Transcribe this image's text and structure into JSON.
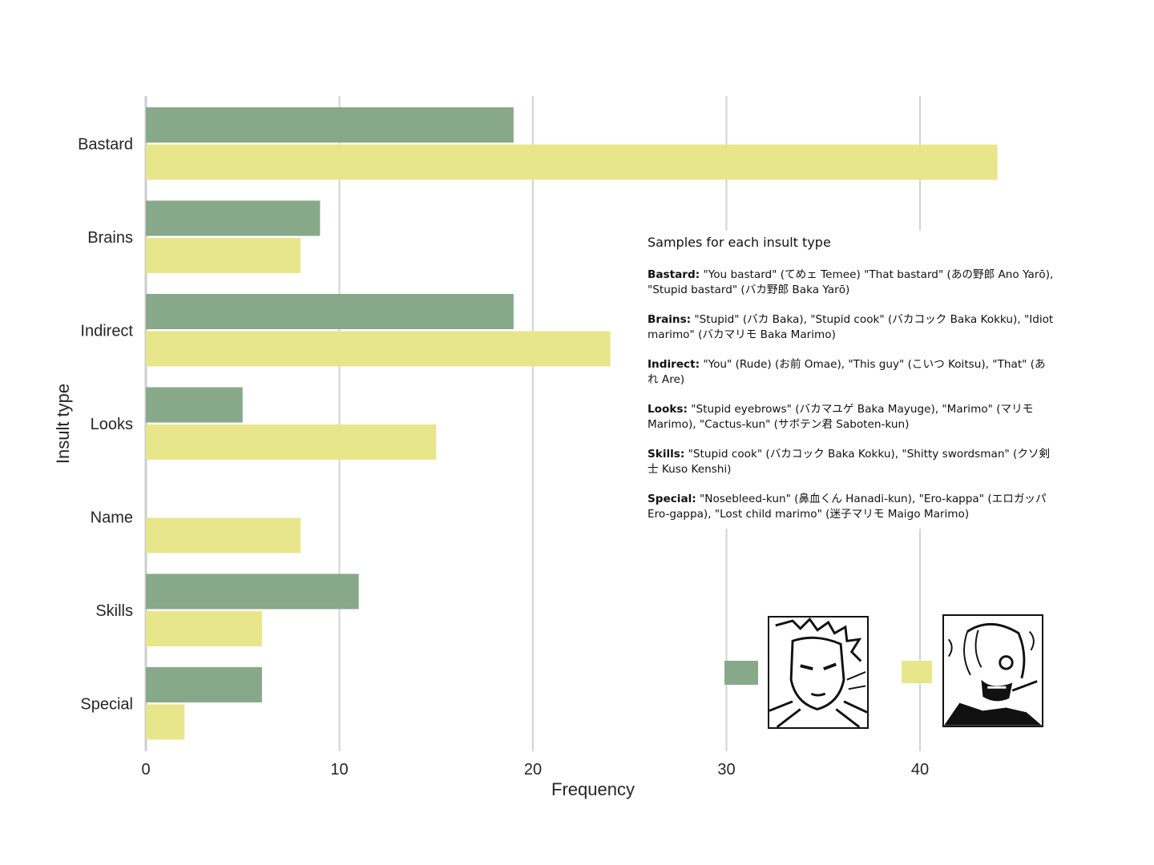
{
  "chart_data": {
    "type": "bar",
    "orientation": "horizontal",
    "categories": [
      "Bastard",
      "Brains",
      "Indirect",
      "Looks",
      "Name",
      "Skills",
      "Special"
    ],
    "series": [
      {
        "name": "Zoro",
        "color": "#87a98a",
        "values": [
          19,
          9,
          19,
          5,
          0,
          11,
          6
        ]
      },
      {
        "name": "Sanji",
        "color": "#e8e68a",
        "values": [
          44,
          8,
          24,
          15,
          8,
          6,
          2
        ]
      }
    ],
    "xlabel": "Frequency",
    "ylabel": "Insult type",
    "xticks": [
      "0",
      "10",
      "20",
      "30",
      "40"
    ],
    "xlim": [
      0,
      46
    ],
    "grid": "vertical",
    "legend": "bottom-right"
  },
  "samples": {
    "title": "Samples for each insult type",
    "entries": [
      {
        "key": "Bastard:",
        "text": " \"You bastard\" (てめェ Temee) \"That bastard\" (あの野郎 Ano Yarō), \"Stupid bastard\" (バカ野郎 Baka Yarō)"
      },
      {
        "key": "Brains:",
        "text": " \"Stupid\" (バカ Baka), \"Stupid cook\" (バカコック Baka Kokku), \"Idiot marimo\" (バカマリモ Baka Marimo)"
      },
      {
        "key": "Indirect:",
        "text": " \"You\" (Rude) (お前 Omae), \"This guy\" (こいつ Koitsu), \"That\" (あれ Are)"
      },
      {
        "key": "Looks:",
        "text": " \"Stupid eyebrows\" (バカマユゲ Baka Mayuge), \"Marimo\" (マリモ Marimo), \"Cactus-kun\" (サボテン君 Saboten-kun)"
      },
      {
        "key": "Skills:",
        "text": " \"Stupid cook\" (バカコック Baka Kokku), \"Shitty swordsman\" (クソ剣士 Kuso Kenshi)"
      },
      {
        "key": "Special:",
        "text": "  \"Nosebleed-kun\" (鼻血くん Hanadi-kun), \"Ero-kappa\" (エロガッパ Ero-gappa), \"Lost child marimo\" (迷子マリモ Maigo Marimo)"
      }
    ]
  }
}
